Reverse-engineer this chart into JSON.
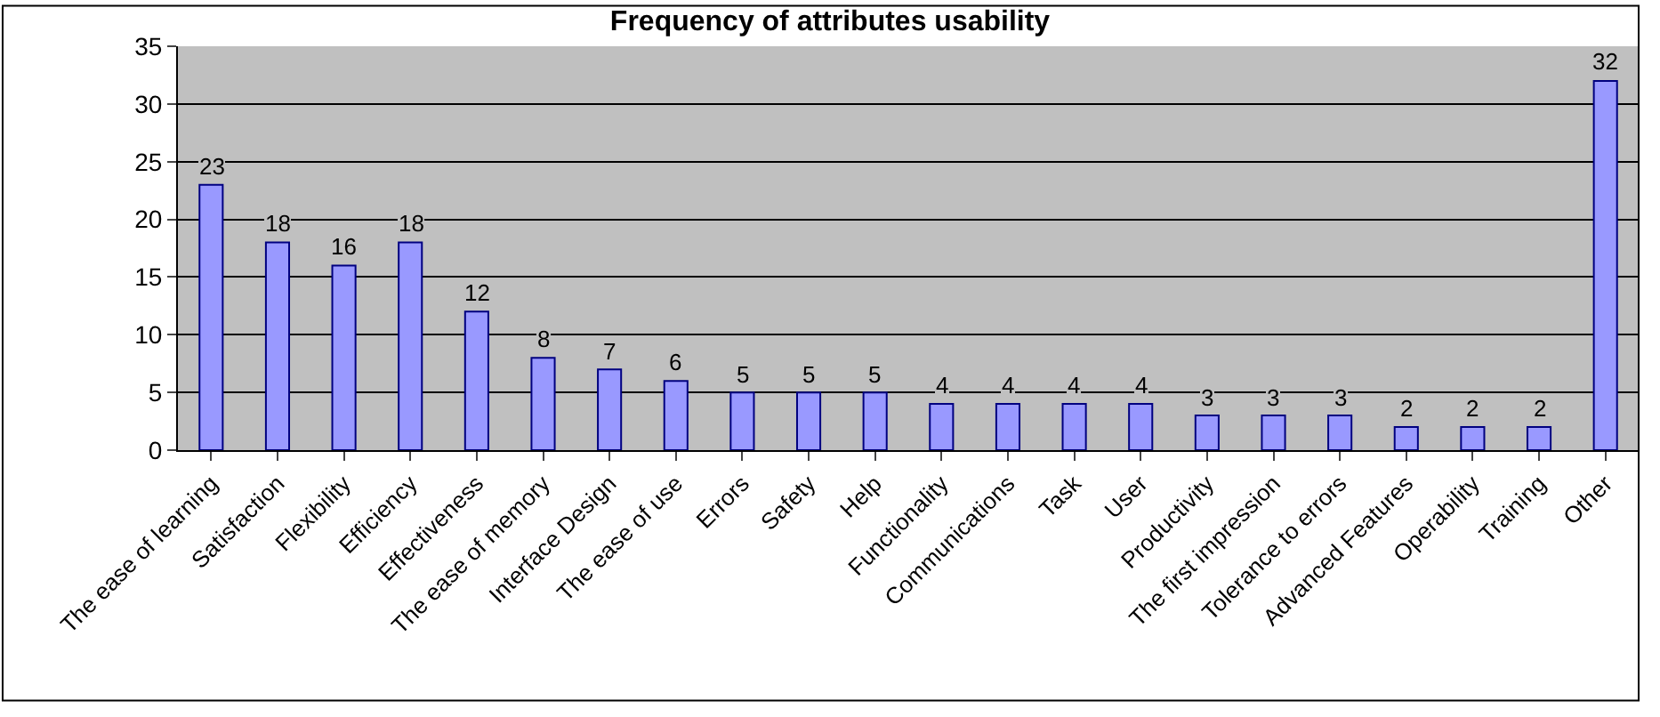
{
  "chart_data": {
    "type": "bar",
    "title": "Frequency of attributes usability",
    "categories": [
      "The ease of learning",
      "Satisfaction",
      "Flexibility",
      "Efficiency",
      "Effectiveness",
      "The ease of memory",
      "Interface Design",
      "The ease of use",
      "Errors",
      "Safety",
      "Help",
      "Functionality",
      "Communications",
      "Task",
      "User",
      "Productivity",
      "The first impression",
      "Tolerance to errors",
      "Advanced Features",
      "Operability",
      "Training",
      "Other"
    ],
    "values": [
      23,
      18,
      16,
      18,
      12,
      8,
      7,
      6,
      5,
      5,
      5,
      4,
      4,
      4,
      4,
      3,
      3,
      3,
      2,
      2,
      2,
      32
    ],
    "color": "#9999ff",
    "ylim": [
      0,
      35
    ],
    "yticks": [
      0,
      5,
      10,
      15,
      20,
      25,
      30,
      35
    ],
    "grid": "y",
    "data_labels": true
  }
}
